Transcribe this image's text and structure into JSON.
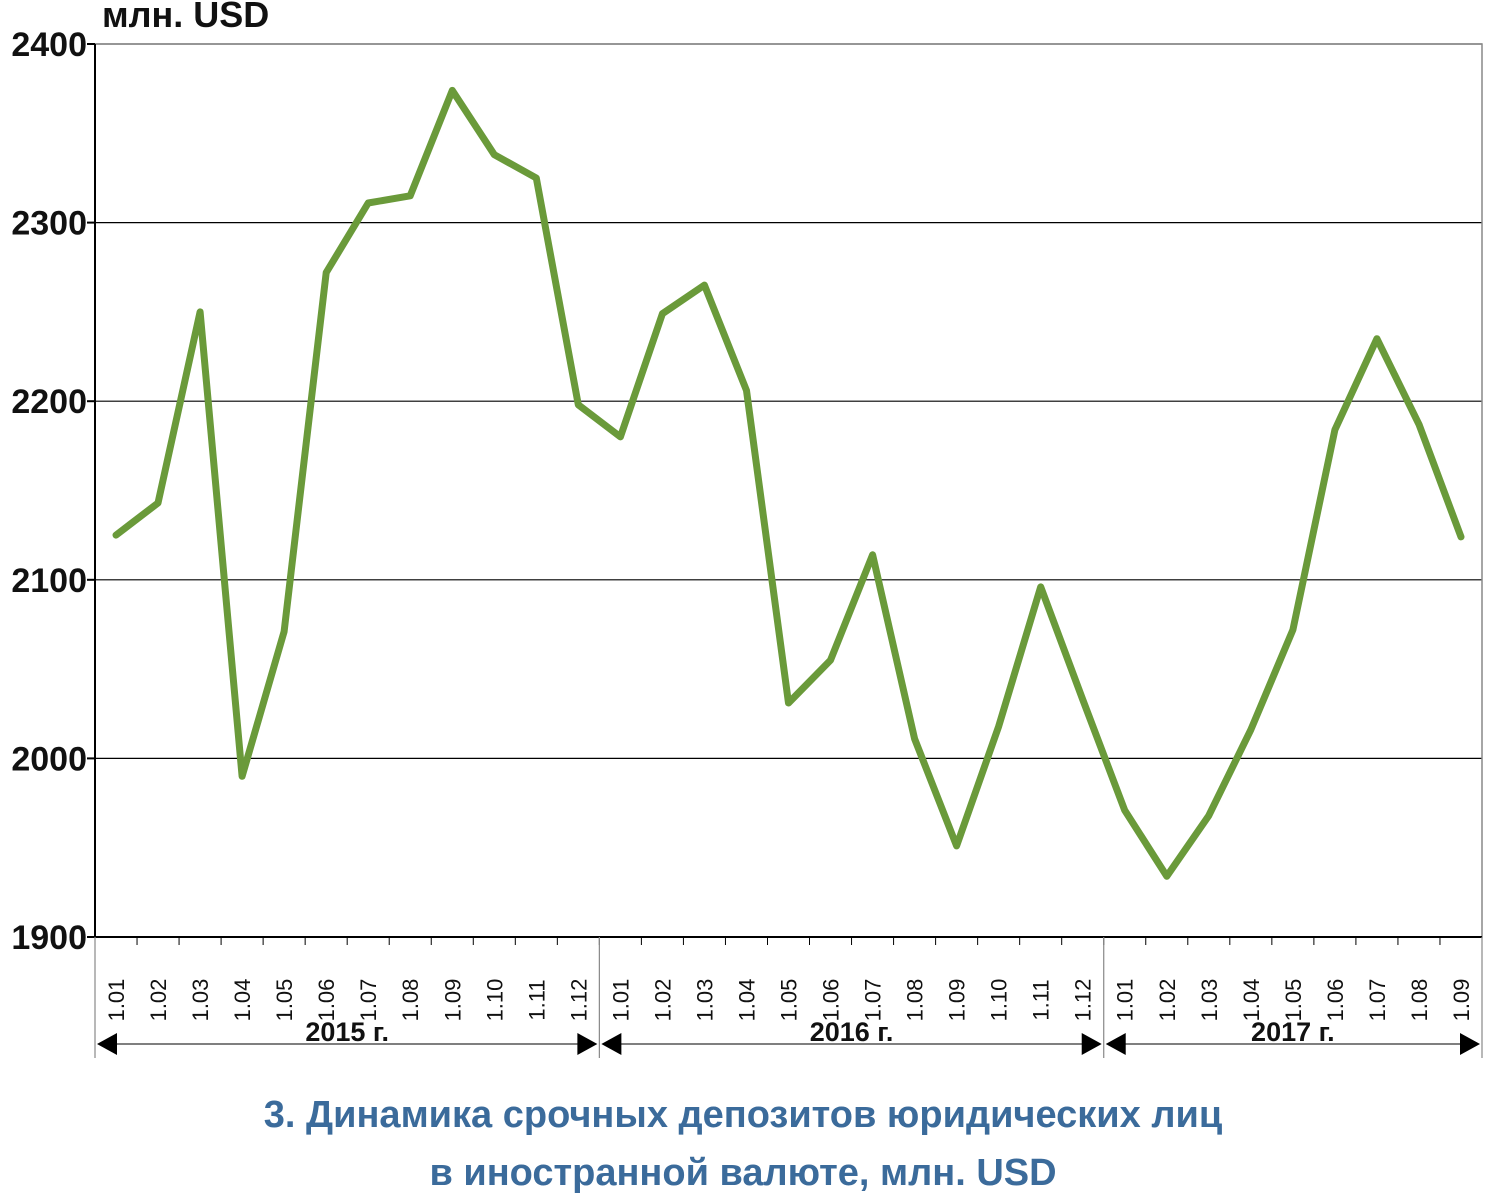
{
  "caption": {
    "line1": "3. Динамика срочных депозитов юридических лиц",
    "line2": "в иностранной валюте, млн. USD"
  },
  "colors": {
    "line": "#6a9a3a",
    "caption": "#3b6b9b",
    "axis": "#000000",
    "grid": "#000000",
    "frame": "#888888"
  },
  "chart_data": {
    "type": "line",
    "ylabel": "млн. USD",
    "ylim": [
      1900,
      2400
    ],
    "yticks": [
      1900,
      2000,
      2100,
      2200,
      2300,
      2400
    ],
    "grid": "horizontal",
    "categories": [
      "1.01",
      "1.02",
      "1.03",
      "1.04",
      "1.05",
      "1.06",
      "1.07",
      "1.08",
      "1.09",
      "1.10",
      "1.11",
      "1.12",
      "1.01",
      "1.02",
      "1.03",
      "1.04",
      "1.05",
      "1.06",
      "1.07",
      "1.08",
      "1.09",
      "1.10",
      "1.11",
      "1.12",
      "1.01",
      "1.02",
      "1.03",
      "1.04",
      "1.05",
      "1.06",
      "1.07",
      "1.08",
      "1.09"
    ],
    "groups": [
      {
        "label": "2015 г.",
        "count": 12
      },
      {
        "label": "2016 г.",
        "count": 12
      },
      {
        "label": "2017 г.",
        "count": 9
      }
    ],
    "series": [
      {
        "values": [
          2125,
          2143,
          2250,
          1990,
          2071,
          2272,
          2311,
          2315,
          2374,
          2338,
          2325,
          2198,
          2180,
          2249,
          2265,
          2206,
          2031,
          2055,
          2114,
          2011,
          1951,
          2018,
          2096,
          2033,
          1971,
          1934,
          1968,
          2016,
          2072,
          2184,
          2235,
          2187,
          2124
        ]
      }
    ]
  }
}
